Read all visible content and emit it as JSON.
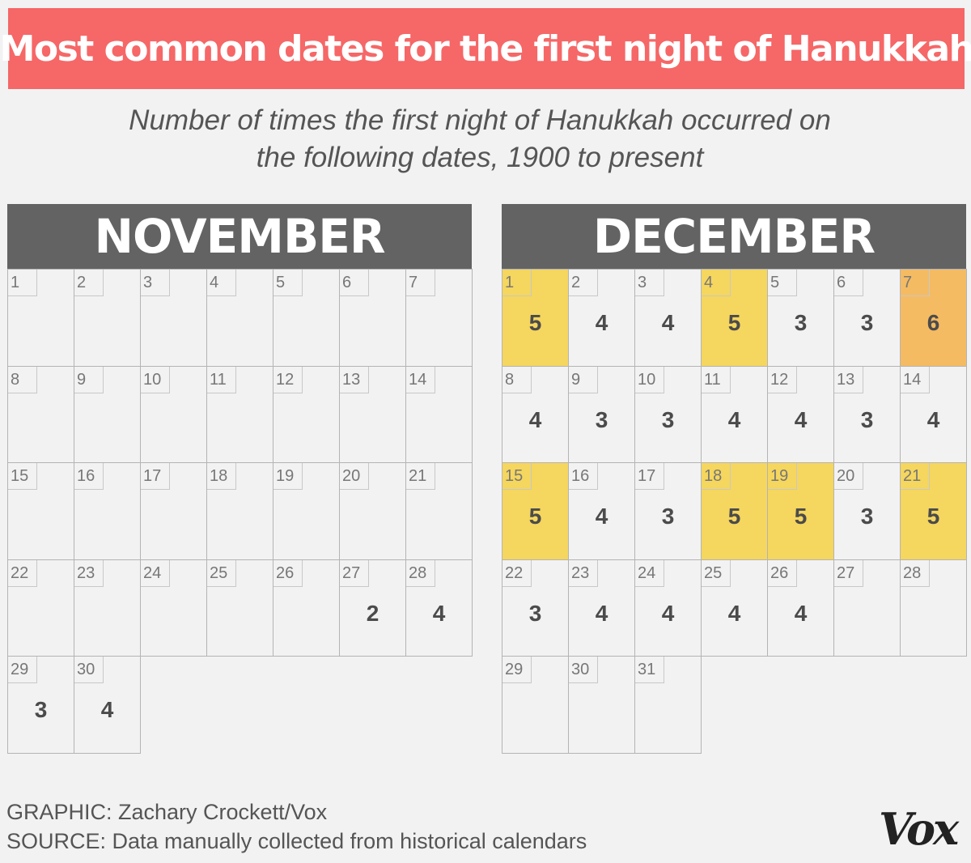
{
  "title": "Most common dates for the first night of Hanukkah",
  "subtitle_lines": [
    "Number of times the first night of Hanukkah occurred on",
    "the following dates, 1900 to present"
  ],
  "credit": {
    "graphic": "GRAPHIC: Zachary Crockett/Vox",
    "source": "SOURCE: Data manually collected from historical calendars"
  },
  "logo": "Vox",
  "colors": {
    "title_bg": "#f66767",
    "header_bg": "#636363",
    "count_5": "#f5d65e",
    "count_6": "#f4bb63",
    "background": "#f2f2f2"
  },
  "chart_data": {
    "type": "heatmap",
    "title": "Most common dates for the first night of Hanukkah",
    "subtitle": "Number of times the first night of Hanukkah occurred on the following dates, 1900 to present",
    "months": [
      {
        "name": "NOVEMBER",
        "days": 30,
        "counts": {
          "27": 2,
          "28": 4,
          "29": 3,
          "30": 4
        }
      },
      {
        "name": "DECEMBER",
        "days": 31,
        "counts": {
          "1": 5,
          "2": 4,
          "3": 4,
          "4": 5,
          "5": 3,
          "6": 3,
          "7": 6,
          "8": 4,
          "9": 3,
          "10": 3,
          "11": 4,
          "12": 4,
          "13": 3,
          "14": 4,
          "15": 5,
          "16": 4,
          "17": 3,
          "18": 5,
          "19": 5,
          "20": 3,
          "21": 5,
          "22": 3,
          "23": 4,
          "24": 4,
          "25": 4,
          "26": 4
        }
      }
    ]
  }
}
